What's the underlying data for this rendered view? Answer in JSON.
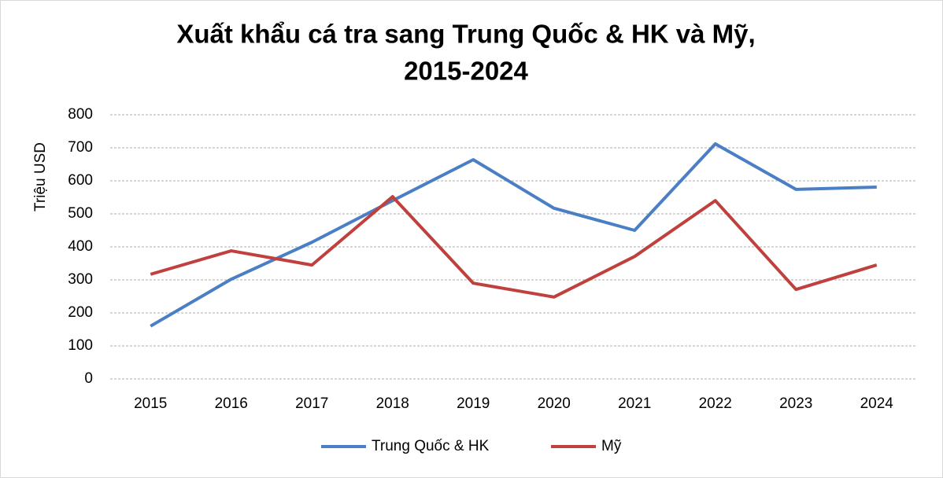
{
  "chart_data": {
    "type": "line",
    "title": [
      "Xuất khẩu cá tra sang Trung Quốc & HK và Mỹ,",
      "2015-2024"
    ],
    "y_label": "Triệu USD",
    "categories": [
      "2015",
      "2016",
      "2017",
      "2018",
      "2019",
      "2020",
      "2021",
      "2022",
      "2023",
      "2024"
    ],
    "series": [
      {
        "name": "Trung Quốc & HK",
        "color": "#4a7ec5",
        "values": [
          160,
          302,
          414,
          540,
          664,
          517,
          450,
          712,
          574,
          581
        ]
      },
      {
        "name": "Mỹ",
        "color": "#c0403d",
        "values": [
          317,
          388,
          345,
          552,
          290,
          248,
          371,
          540,
          271,
          345
        ]
      }
    ],
    "ylim": [
      0,
      800
    ],
    "yticks": [
      0,
      100,
      200,
      300,
      400,
      500,
      600,
      700,
      800
    ],
    "grid": true,
    "legend": "bottom"
  }
}
